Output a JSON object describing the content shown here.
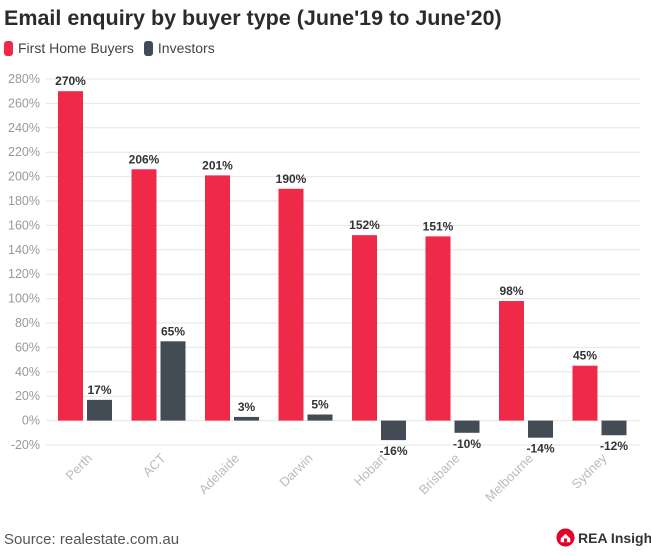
{
  "header": {
    "title": "Email enquiry by buyer type (June'19 to June'20)"
  },
  "legend": {
    "items": [
      "First Home Buyers",
      "Investors"
    ]
  },
  "footer": {
    "source": "Source: realestate.com.au",
    "brand": "REA Insights"
  },
  "colors": {
    "first_home_buyers": "#ee2a48",
    "investors": "#434c55",
    "brand": "#e4002b"
  },
  "icons": {
    "brand_logo": "rea-logo-icon"
  },
  "chart_data": {
    "type": "bar",
    "title": "Email enquiry by buyer type (June'19 to June'20)",
    "xlabel": "",
    "ylabel": "",
    "ylim": [
      -20,
      280
    ],
    "ytick_step": 20,
    "ytick_format": "percent",
    "grid": true,
    "legend_position": "top-left",
    "categories": [
      "Perth",
      "ACT",
      "Adelaide",
      "Darwin",
      "Hobart",
      "Brisbane",
      "Melbourne",
      "Sydney"
    ],
    "series": [
      {
        "name": "First Home Buyers",
        "values": [
          270,
          206,
          201,
          190,
          152,
          151,
          98,
          45
        ],
        "labels": [
          "270%",
          "206%",
          "201%",
          "190%",
          "152%",
          "151%",
          "98%",
          "45%"
        ]
      },
      {
        "name": "Investors",
        "values": [
          17,
          65,
          3,
          5,
          -16,
          -10,
          -14,
          -12
        ],
        "labels": [
          "17%",
          "65%",
          "3%",
          "5%",
          "-16%",
          "-10%",
          "-14%",
          "-12%"
        ]
      }
    ]
  }
}
